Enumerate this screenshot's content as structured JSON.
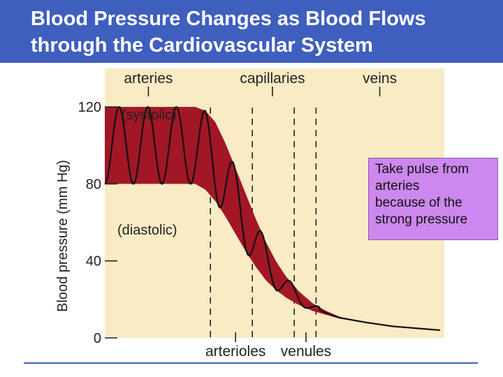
{
  "slide": {
    "title_line1": "Blood Pressure Changes as Blood Flows",
    "title_line2": "through the Cardiovascular System",
    "callout_lines": [
      "Take pulse from",
      "arteries",
      "because of the",
      "strong pressure"
    ],
    "colors": {
      "title_bar": "#3f5fbf",
      "plot_bg": "#f9ebc4",
      "band": "#a21726",
      "callout_bg": "#cc88ee"
    }
  },
  "chart_data": {
    "type": "area",
    "title": "",
    "xlabel": "",
    "ylabel": "Blood pressure (mm Hg)",
    "ylim": [
      0,
      140
    ],
    "yticks": [
      0,
      40,
      80,
      120
    ],
    "regions_top": [
      "arteries",
      "capillaries",
      "veins"
    ],
    "regions_bottom": [
      "arterioles",
      "venules"
    ],
    "annotations": [
      "(systolic)",
      "(diastolic)"
    ],
    "series": [
      {
        "name": "systolic",
        "x": [
          0,
          0.27,
          0.3,
          0.33,
          0.36,
          0.39,
          0.42,
          0.45,
          0.48,
          0.51,
          0.54,
          0.58,
          0.62,
          0.66,
          0.7,
          0.78,
          0.86,
          0.93,
          1
        ],
        "y": [
          120,
          120,
          118,
          112,
          101,
          88,
          75,
          62,
          50,
          40,
          32,
          24,
          18,
          14,
          11,
          8,
          6,
          5,
          4
        ]
      },
      {
        "name": "diastolic",
        "x": [
          0,
          0.27,
          0.3,
          0.33,
          0.36,
          0.39,
          0.42,
          0.45,
          0.48,
          0.51,
          0.54,
          0.58,
          0.62,
          0.66,
          0.7,
          0.78,
          0.86,
          0.93,
          1
        ],
        "y": [
          80,
          80,
          77,
          71,
          63,
          54,
          45,
          37,
          30,
          25,
          21,
          17,
          14,
          12,
          10,
          8,
          6,
          5,
          4
        ]
      }
    ],
    "pulse_cycles": 7.5,
    "pulse_end_x": 0.64,
    "dividers_x": [
      0.315,
      0.44,
      0.565,
      0.63
    ]
  }
}
